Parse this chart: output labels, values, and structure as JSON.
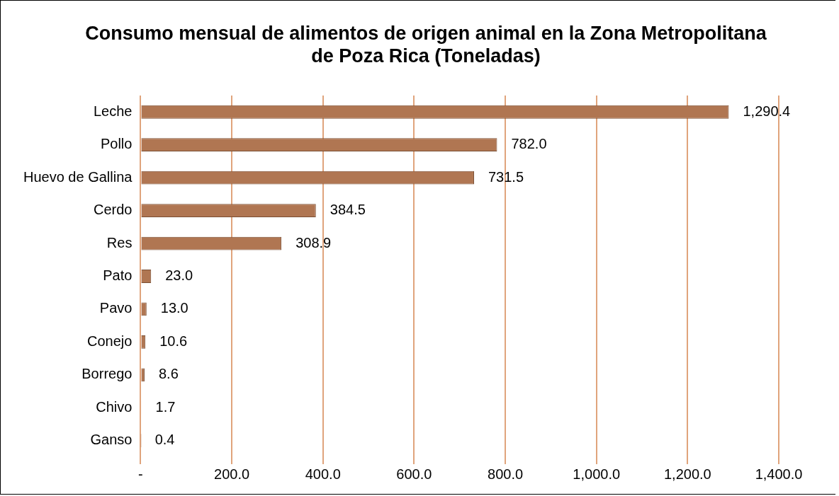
{
  "chart_data": {
    "type": "bar",
    "orientation": "horizontal",
    "title": "Consumo mensual de alimentos de origen animal en la Zona Metropolitana de Poza Rica (Toneladas)",
    "categories": [
      "Leche",
      "Pollo",
      "Huevo de Gallina",
      "Cerdo",
      "Res",
      "Pato",
      "Pavo",
      "Conejo",
      "Borrego",
      "Chivo",
      "Ganso"
    ],
    "values": [
      1290.4,
      782.0,
      731.5,
      384.5,
      308.9,
      23.0,
      13.0,
      10.6,
      8.6,
      1.7,
      0.4
    ],
    "value_labels": [
      "1,290.4",
      "782.0",
      "731.5",
      "384.5",
      "308.9",
      "23.0",
      "13.0",
      "10.6",
      "8.6",
      "1.7",
      "0.4"
    ],
    "color": "#b07652",
    "xlim": [
      0,
      1400
    ],
    "xticks": [
      {
        "value": 0,
        "label": "-"
      },
      {
        "value": 200,
        "label": "200.0"
      },
      {
        "value": 400,
        "label": "400.0"
      },
      {
        "value": 600,
        "label": "600.0"
      },
      {
        "value": 800,
        "label": "800.0"
      },
      {
        "value": 1000,
        "label": "1,000.0"
      },
      {
        "value": 1200,
        "label": "1,200.0"
      },
      {
        "value": 1400,
        "label": "1,400.0"
      }
    ],
    "grid": "x",
    "legend": false
  }
}
